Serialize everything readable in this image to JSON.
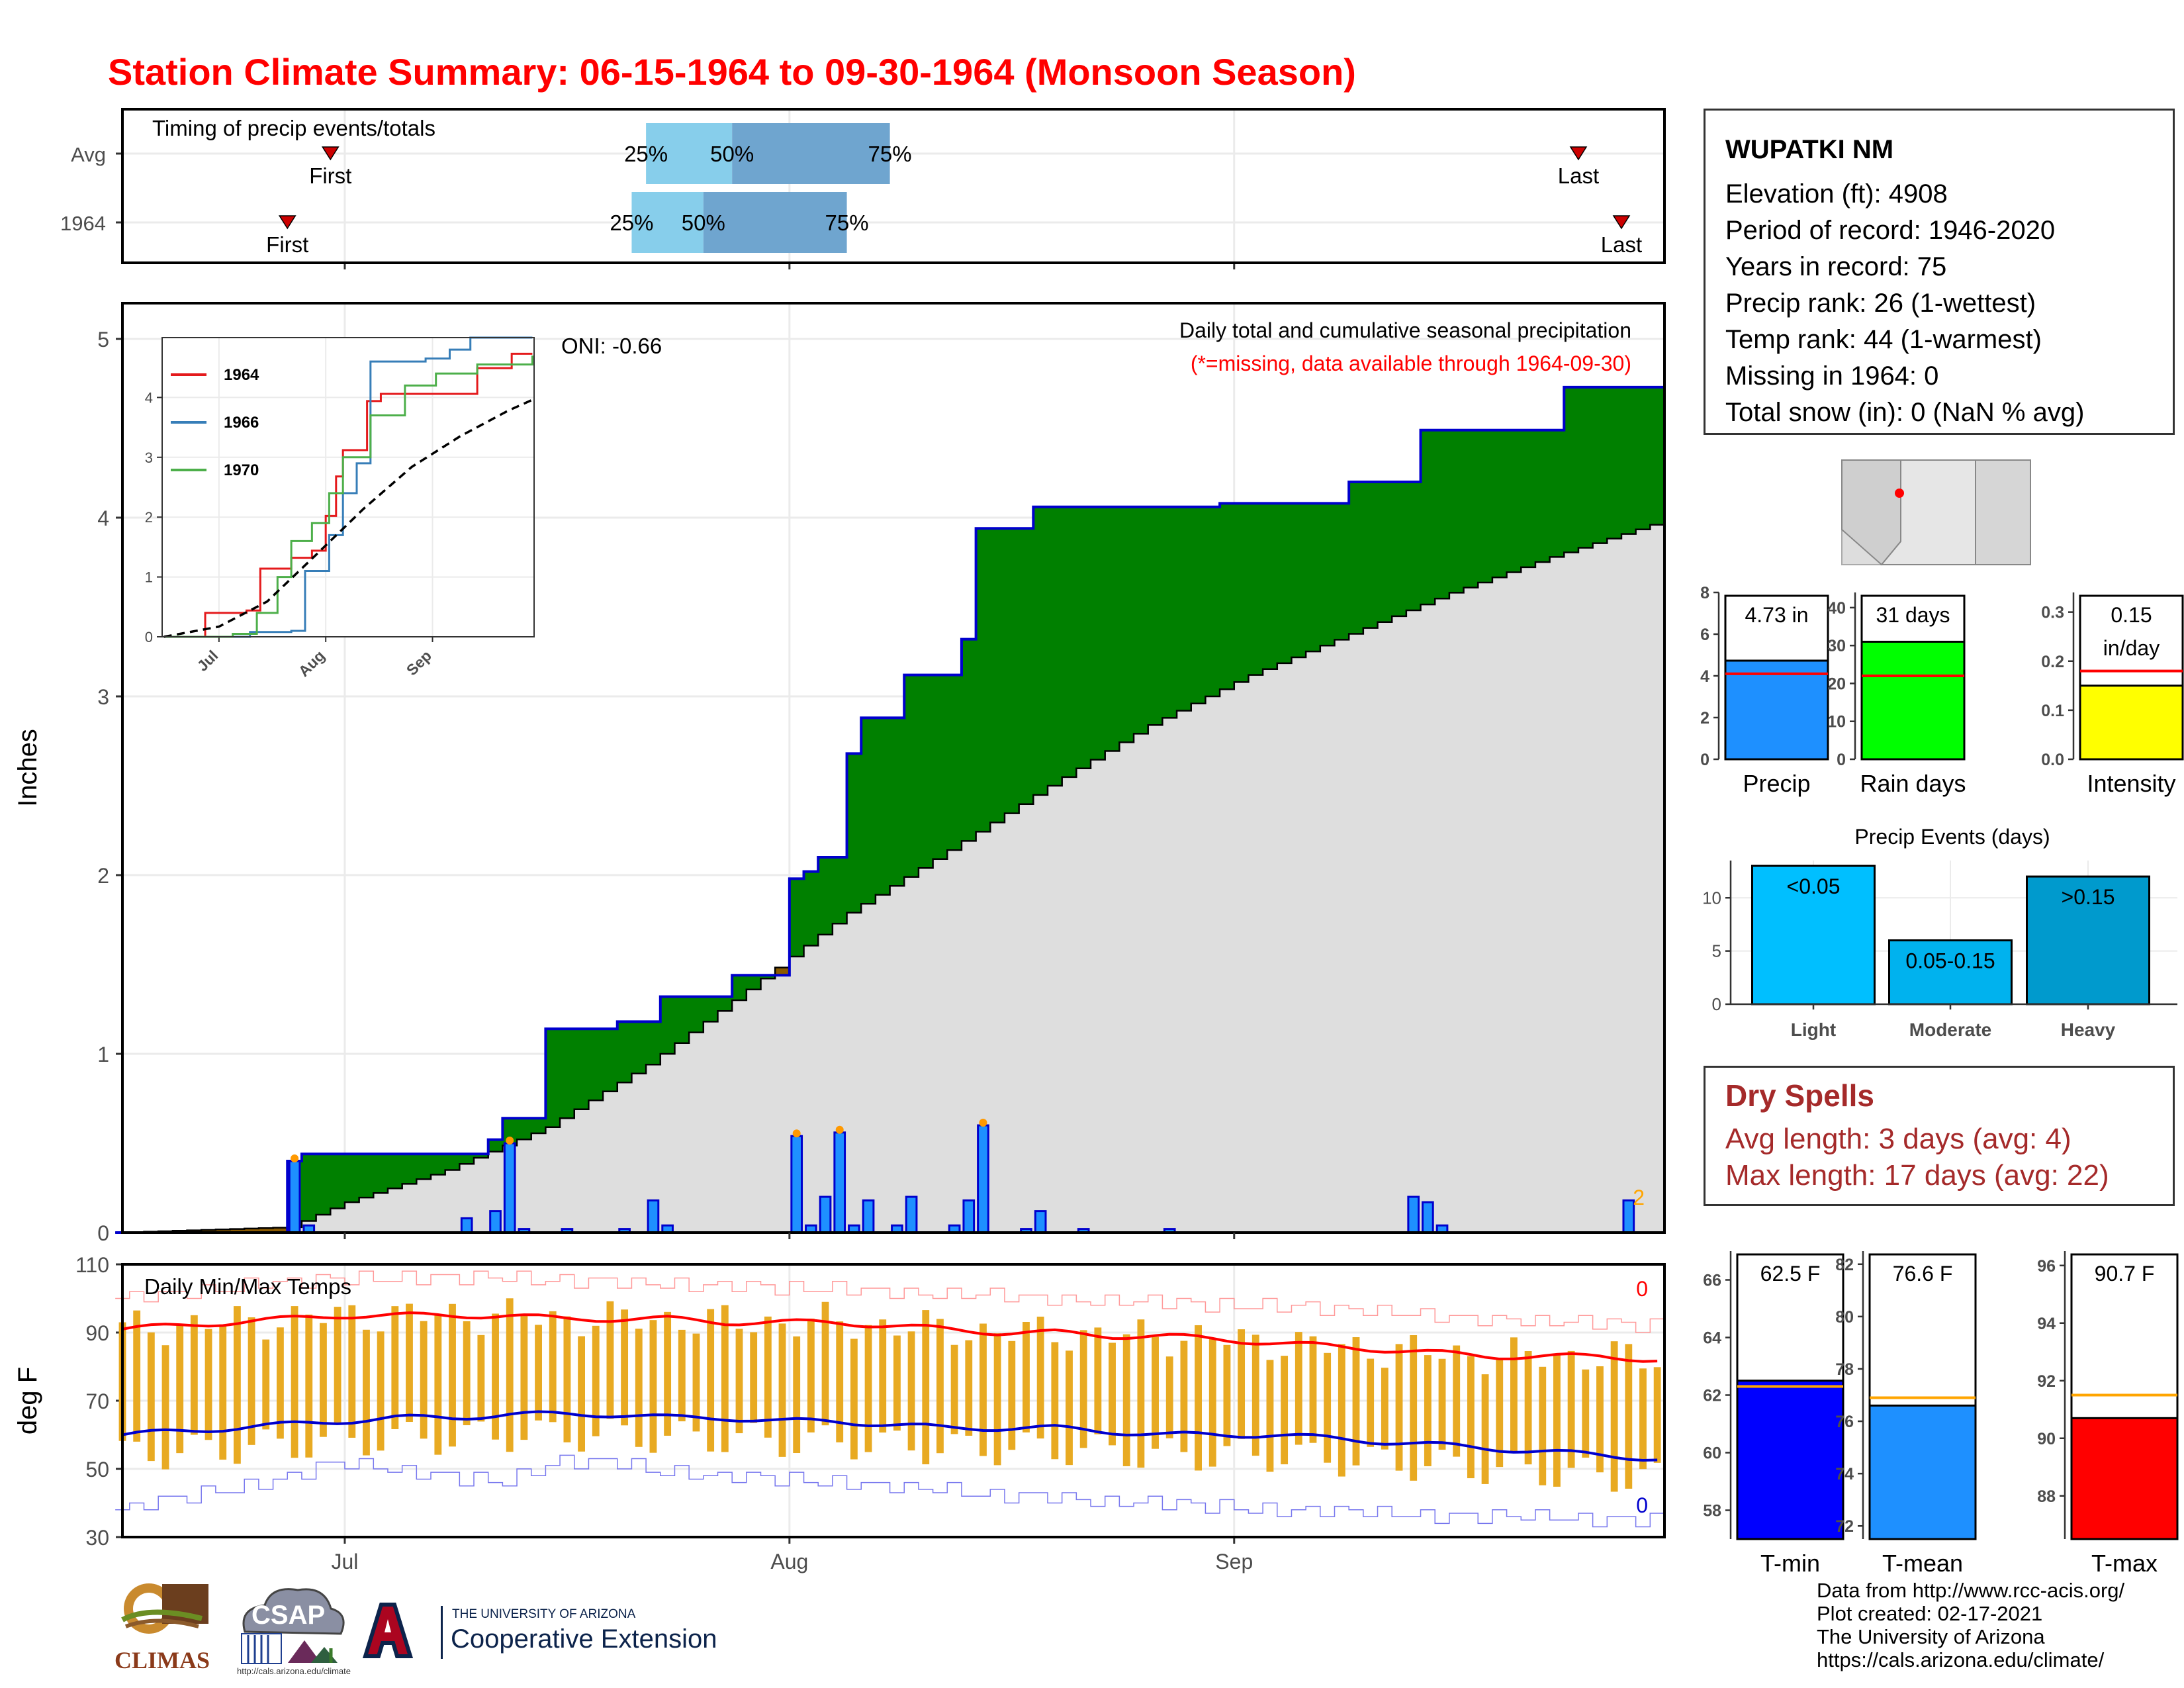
{
  "title": "Station Climate Summary: 06-15-1964 to 09-30-1964 (Monsoon Season)",
  "station": {
    "name": "WUPATKI NM",
    "lines": [
      "Elevation (ft): 4908",
      "Period of record: 1946-2020",
      "Years in record: 75",
      "Precip rank: 26 (1-wettest)",
      "Temp rank: 44 (1-warmest)",
      "Missing in 1964: 0",
      "Total snow (in): 0 (NaN % avg)"
    ]
  },
  "dry_spells": {
    "title": "Dry Spells",
    "avg": "Avg length: 3 days (avg: 4)",
    "max": "Max length: 17 days (avg: 22)"
  },
  "credits": [
    "Data from http://www.rcc-acis.org/",
    "Plot created: 02-17-2021",
    "The University of Arizona",
    "https://cals.arizona.edu/climate/"
  ],
  "logos": {
    "climas": "CLIMAS",
    "csap": "CSAP",
    "csap_url": "http://cals.arizona.edu/climate",
    "ua_small": "THE UNIVERSITY OF ARIZONA",
    "ua_big": "Cooperative Extension"
  },
  "colors": {
    "title_red": "#ff0000",
    "quartile_light": "#87ceeb",
    "quartile_dark": "#6fa5cf",
    "cum_fill_green": "#008000",
    "cum_line_blue": "#0000cd",
    "avg_fill_gray": "#dedede",
    "daily_bar_blue": "#1e90ff",
    "early_brown": "#8b5a00",
    "temp_bar_orange": "#e8aa22",
    "tmax_red": "#ff0000",
    "tmin_blue": "#0000cd"
  },
  "chart_data": [
    {
      "type": "timeline",
      "title": "Timing of precip events/totals",
      "categories": [
        "Avg",
        "1964"
      ],
      "x_range": [
        "06-15",
        "09-30"
      ],
      "x_ticks": [
        "Jul",
        "Aug",
        "Sep"
      ],
      "rows": [
        {
          "name": "Avg",
          "first": "06-30",
          "q25": "07-22",
          "q50": "07-28",
          "q75": "08-08",
          "last": "09-25",
          "labels": {
            "first": "First",
            "last": "Last",
            "q25": "25%",
            "q50": "50%",
            "q75": "75%"
          }
        },
        {
          "name": "1964",
          "first": "06-27",
          "q25": "07-21",
          "q50": "07-26",
          "q75": "08-05",
          "last": "09-28",
          "labels": {
            "first": "First",
            "last": "Last",
            "q25": "25%",
            "q50": "50%",
            "q75": "75%"
          }
        }
      ]
    },
    {
      "type": "area",
      "title": "Daily total and cumulative seasonal precipitation",
      "subtitle": "(*=missing, data available through 1964-09-30)",
      "oni_label": "ONI: -0.66",
      "corner_label": "2",
      "ylabel": "Inches",
      "ylim": [
        0,
        5.2
      ],
      "y_ticks": [
        0,
        1,
        2,
        3,
        4,
        5
      ],
      "x_ticks": [
        "Jul",
        "Aug",
        "Sep"
      ],
      "x_range": [
        "06-15",
        "09-30"
      ],
      "series": [
        {
          "name": "Cumulative 1964",
          "x": [
            "06-15",
            "06-27",
            "06-28",
            "07-01",
            "07-04",
            "07-09",
            "07-11",
            "07-12",
            "07-15",
            "07-20",
            "07-22",
            "07-23",
            "07-28",
            "07-30",
            "08-01",
            "08-02",
            "08-03",
            "08-05",
            "08-06",
            "08-08",
            "08-09",
            "08-13",
            "08-14",
            "08-17",
            "08-18",
            "08-25",
            "08-31",
            "09-05",
            "09-09",
            "09-14",
            "09-24",
            "09-30"
          ],
          "y": [
            0,
            0.4,
            0.44,
            0.44,
            0.44,
            0.44,
            0.52,
            0.64,
            1.14,
            1.18,
            1.18,
            1.32,
            1.44,
            1.44,
            1.98,
            2.02,
            2.1,
            2.68,
            2.88,
            2.88,
            3.12,
            3.32,
            3.94,
            3.94,
            4.06,
            4.06,
            4.08,
            4.08,
            4.2,
            4.49,
            4.73,
            4.73
          ]
        },
        {
          "name": "Cumulative average",
          "x": [
            "06-15",
            "06-27",
            "07-01",
            "07-08",
            "07-15",
            "07-22",
            "07-29",
            "08-05",
            "08-12",
            "08-19",
            "08-26",
            "09-02",
            "09-09",
            "09-16",
            "09-23",
            "09-30"
          ],
          "y": [
            0,
            0.03,
            0.17,
            0.35,
            0.59,
            0.94,
            1.36,
            1.79,
            2.14,
            2.5,
            2.84,
            3.12,
            3.35,
            3.58,
            3.78,
            3.96
          ]
        },
        {
          "name": "Daily precip",
          "x": [
            "06-27",
            "06-28",
            "07-09",
            "07-11",
            "07-12",
            "07-13",
            "07-16",
            "07-20",
            "07-22",
            "07-23",
            "08-01",
            "08-02",
            "08-03",
            "08-04",
            "08-05",
            "08-06",
            "08-08",
            "08-09",
            "08-12",
            "08-13",
            "08-14",
            "08-17",
            "08-18",
            "08-21",
            "08-27",
            "09-13",
            "09-14",
            "09-15",
            "09-28"
          ],
          "y": [
            0.4,
            0.04,
            0.08,
            0.12,
            0.5,
            0.02,
            0.02,
            0.02,
            0.18,
            0.04,
            0.54,
            0.04,
            0.2,
            0.56,
            0.04,
            0.18,
            0.04,
            0.2,
            0.04,
            0.18,
            0.6,
            0.02,
            0.12,
            0.02,
            0.02,
            0.2,
            0.17,
            0.04,
            0.18
          ]
        }
      ],
      "inset": {
        "type": "line",
        "x_ticks": [
          "Jul",
          "Aug",
          "Sep"
        ],
        "y_ticks": [
          0,
          1,
          2,
          3,
          4
        ],
        "ylim": [
          0,
          5
        ],
        "series": [
          {
            "name": "1964",
            "color": "#e41a1c",
            "x": [
              "06-15",
              "06-27",
              "07-09",
              "07-13",
              "07-22",
              "07-28",
              "08-01",
              "08-04",
              "08-06",
              "08-13",
              "08-17",
              "09-14",
              "09-24",
              "09-30"
            ],
            "y": [
              0,
              0.4,
              0.44,
              1.14,
              1.32,
              1.44,
              2.02,
              2.68,
              3.12,
              3.94,
              4.06,
              4.49,
              4.73,
              4.73
            ]
          },
          {
            "name": "1966",
            "color": "#377eb8",
            "x": [
              "06-15",
              "07-10",
              "07-22",
              "07-26",
              "08-02",
              "08-06",
              "08-10",
              "08-14",
              "08-30",
              "09-06",
              "09-12",
              "09-30"
            ],
            "y": [
              0,
              0.08,
              0.1,
              1.1,
              1.7,
              2.4,
              2.9,
              4.6,
              4.65,
              4.8,
              5.0,
              5.0
            ]
          },
          {
            "name": "1970",
            "color": "#4daf4a",
            "x": [
              "06-15",
              "07-05",
              "07-12",
              "07-18",
              "07-22",
              "07-28",
              "08-02",
              "08-06",
              "08-14",
              "08-24",
              "09-02",
              "09-14",
              "09-30"
            ],
            "y": [
              0,
              0.05,
              0.4,
              1.0,
              1.6,
              1.9,
              2.4,
              3.0,
              3.7,
              4.2,
              4.4,
              4.55,
              4.7
            ]
          },
          {
            "name": "Average",
            "color": "#000000",
            "dashed": true,
            "x": [
              "06-15",
              "07-01",
              "07-15",
              "07-29",
              "08-12",
              "08-26",
              "09-09",
              "09-23",
              "09-30"
            ],
            "y": [
              0,
              0.17,
              0.59,
              1.36,
              2.14,
              2.84,
              3.35,
              3.78,
              3.96
            ]
          }
        ]
      }
    },
    {
      "type": "line",
      "title": "Daily Min/Max Temps",
      "ylabel": "deg F",
      "ylim": [
        30,
        110
      ],
      "y_ticks": [
        30,
        50,
        70,
        90,
        110
      ],
      "x_ticks": [
        "Jul",
        "Aug",
        "Sep"
      ],
      "x_range": [
        "06-15",
        "09-30"
      ],
      "max_count_label": "0",
      "min_count_label": "0",
      "series": [
        {
          "name": "Avg max",
          "values_daily_sampled": [
            91,
            92,
            93,
            94,
            95,
            95,
            95,
            95,
            94,
            94,
            94,
            93,
            93,
            93,
            92,
            91,
            90,
            90,
            89,
            89,
            88,
            87,
            86,
            85,
            84,
            83,
            83,
            83,
            82
          ]
        },
        {
          "name": "Avg min",
          "values_daily_sampled": [
            60,
            61,
            62,
            63,
            64,
            65,
            65,
            66,
            66,
            66,
            65,
            65,
            64,
            64,
            63,
            62,
            62,
            62,
            61,
            60,
            60,
            60,
            59,
            58,
            57,
            56,
            55,
            54,
            53
          ]
        },
        {
          "name": "Record high",
          "values_daily_sampled": [
            100,
            101,
            103,
            105,
            106,
            106,
            106,
            106,
            105,
            105,
            104,
            104,
            103,
            103,
            102,
            101,
            101,
            100,
            99,
            99,
            98,
            98,
            97,
            96,
            95,
            94,
            93,
            93,
            92
          ]
        },
        {
          "name": "Record low",
          "values_daily_sampled": [
            38,
            41,
            44,
            47,
            52,
            50,
            48,
            46,
            52,
            52,
            49,
            48,
            47,
            46,
            45,
            44,
            42,
            42,
            40,
            40,
            39,
            38,
            38,
            37,
            36,
            36,
            36,
            35,
            35
          ]
        }
      ]
    },
    {
      "type": "bar",
      "title": "",
      "categories": [
        "Precip",
        "Rain days",
        "Intensity"
      ],
      "panels": [
        {
          "name": "Precip",
          "value": 4.73,
          "avg": 4.1,
          "label": "4.73 in",
          "ylim": [
            0,
            8
          ],
          "y_ticks": [
            0,
            2,
            4,
            6,
            8
          ],
          "color": "#1e90ff"
        },
        {
          "name": "Rain days",
          "value": 31,
          "avg": 22,
          "label": "31 days",
          "ylim": [
            0,
            44
          ],
          "y_ticks": [
            0,
            10,
            20,
            30,
            40
          ],
          "color": "#00ff00"
        },
        {
          "name": "Intensity",
          "value": 0.15,
          "avg": 0.18,
          "label": "0.15 in/day",
          "ylim": [
            0,
            0.34
          ],
          "y_ticks": [
            0.0,
            0.1,
            0.2,
            0.3
          ],
          "color": "#ffff00"
        }
      ]
    },
    {
      "type": "bar",
      "title": "Precip Events (days)",
      "categories": [
        "Light",
        "Moderate",
        "Heavy"
      ],
      "values": [
        13,
        6,
        12
      ],
      "bar_labels": [
        "<0.05",
        "0.05-0.15",
        ">0.15"
      ],
      "colors": [
        "#00bfff",
        "#00b2ee",
        "#009acd"
      ],
      "ylim": [
        0,
        13.5
      ],
      "y_ticks": [
        0,
        5,
        10
      ]
    },
    {
      "type": "bar",
      "title": "",
      "categories": [
        "T-min",
        "T-mean",
        "T-max"
      ],
      "panels": [
        {
          "name": "T-min",
          "value": 62.5,
          "avg": 62.3,
          "label": "62.5 F",
          "ylim": [
            57,
            67
          ],
          "y_ticks": [
            58,
            60,
            62,
            64,
            66
          ],
          "color": "#0000ff"
        },
        {
          "name": "T-mean",
          "value": 76.6,
          "avg": 76.9,
          "label": "76.6 F",
          "ylim": [
            71.5,
            82.5
          ],
          "y_ticks": [
            72,
            74,
            76,
            78,
            80,
            82
          ],
          "color": "#1e90ff"
        },
        {
          "name": "T-max",
          "value": 90.7,
          "avg": 91.5,
          "label": "90.7 F",
          "ylim": [
            86.5,
            96.5
          ],
          "y_ticks": [
            88,
            90,
            92,
            94,
            96
          ],
          "color": "#ff0000"
        }
      ]
    }
  ]
}
